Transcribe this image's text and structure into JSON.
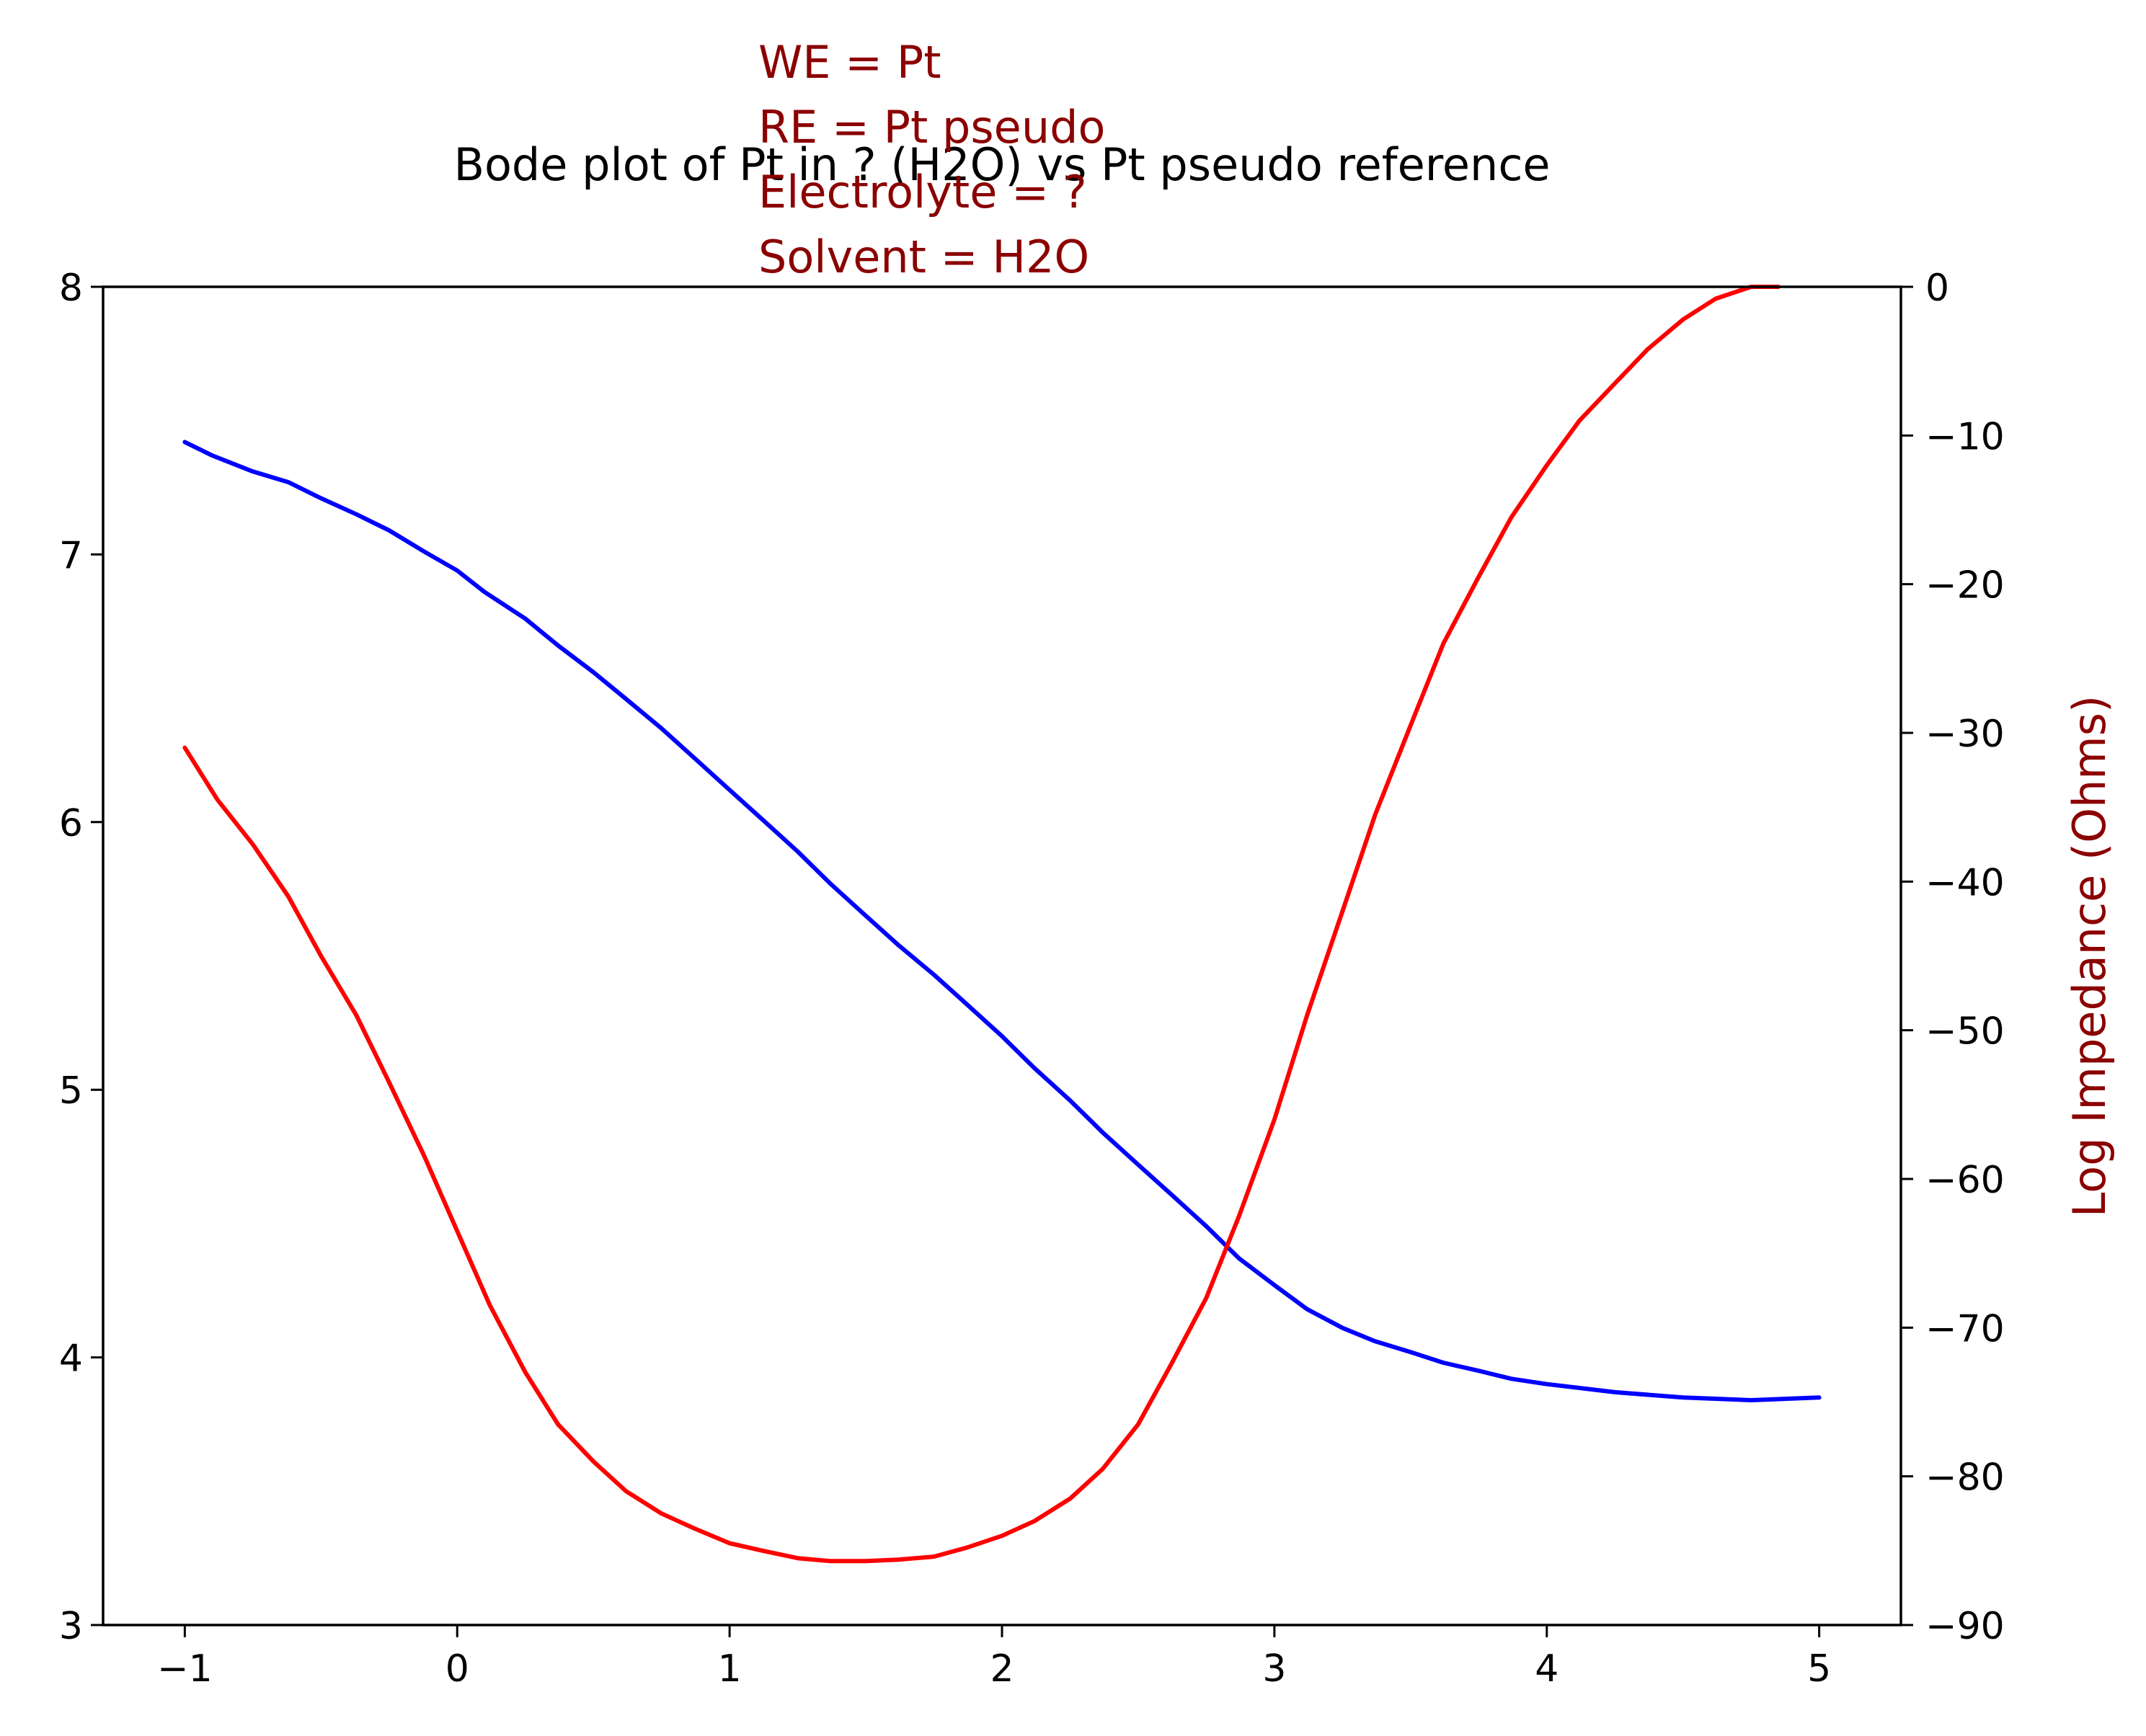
{
  "chart_data": {
    "type": "line",
    "title": "Bode plot of Pt in ? (H2O) vs Pt pseudo reference",
    "annotation": [
      "WE = Pt",
      "RE = Pt pseudo",
      "Electrolyte = ?",
      "Solvent = H2O"
    ],
    "xlabel": "",
    "ylabel_left": "",
    "ylabel_right": "Log Impedance (Ohms)",
    "xlim": [
      -1.3,
      5.3
    ],
    "ylim_left": [
      3,
      8
    ],
    "ylim_right": [
      -90,
      0
    ],
    "xticks": [
      -1,
      0,
      1,
      2,
      3,
      4,
      5
    ],
    "xtick_labels": [
      "−1",
      "0",
      "1",
      "2",
      "3",
      "4",
      "5"
    ],
    "yticks_left": [
      3,
      4,
      5,
      6,
      7,
      8
    ],
    "ytick_labels_left": [
      "3",
      "4",
      "5",
      "6",
      "7",
      "8"
    ],
    "yticks_right": [
      0,
      -10,
      -20,
      -30,
      -40,
      -50,
      -60,
      -70,
      -80,
      -90
    ],
    "ytick_labels_right": [
      "0",
      "−10",
      "−20",
      "−30",
      "−40",
      "−50",
      "−60",
      "−70",
      "−80",
      "−90"
    ],
    "grid": false,
    "colors": {
      "annotation": "#8b0000",
      "axis_label_right": "#8b0000",
      "blue": "#0000ff",
      "red": "#ff0000"
    },
    "series": [
      {
        "axis": "left",
        "color": "#0000ff",
        "x": [
          -1.0,
          -0.9,
          -0.75,
          -0.62,
          -0.5,
          -0.37,
          -0.25,
          -0.12,
          0.0,
          0.1,
          0.25,
          0.37,
          0.5,
          0.62,
          0.75,
          0.87,
          1.0,
          1.12,
          1.25,
          1.37,
          1.5,
          1.62,
          1.75,
          1.87,
          2.0,
          2.12,
          2.25,
          2.37,
          2.5,
          2.62,
          2.75,
          2.87,
          3.0,
          3.12,
          3.25,
          3.37,
          3.5,
          3.62,
          3.75,
          3.87,
          4.0,
          4.25,
          4.5,
          4.75,
          5.0
        ],
        "values": [
          7.42,
          7.37,
          7.31,
          7.27,
          7.21,
          7.15,
          7.09,
          7.01,
          6.94,
          6.86,
          6.76,
          6.66,
          6.56,
          6.46,
          6.35,
          6.24,
          6.12,
          6.01,
          5.89,
          5.77,
          5.65,
          5.54,
          5.43,
          5.32,
          5.2,
          5.08,
          4.96,
          4.84,
          4.72,
          4.61,
          4.49,
          4.37,
          4.27,
          4.18,
          4.11,
          4.06,
          4.02,
          3.98,
          3.95,
          3.92,
          3.9,
          3.87,
          3.85,
          3.84,
          3.85
        ]
      },
      {
        "axis": "right",
        "color": "#ff0000",
        "x": [
          -1.0,
          -0.88,
          -0.75,
          -0.62,
          -0.5,
          -0.37,
          -0.25,
          -0.12,
          0.0,
          0.12,
          0.25,
          0.37,
          0.5,
          0.62,
          0.75,
          0.87,
          1.0,
          1.12,
          1.25,
          1.37,
          1.5,
          1.62,
          1.75,
          1.87,
          2.0,
          2.12,
          2.25,
          2.37,
          2.5,
          2.62,
          2.75,
          2.87,
          3.0,
          3.12,
          3.25,
          3.37,
          3.5,
          3.62,
          3.75,
          3.87,
          4.0,
          4.12,
          4.25,
          4.37,
          4.5,
          4.62,
          4.75,
          4.85
        ],
        "values": [
          -31.0,
          -34.5,
          -37.5,
          -41.0,
          -45.0,
          -49.0,
          -53.5,
          -58.5,
          -63.5,
          -68.5,
          -73.0,
          -76.5,
          -79.0,
          -81.0,
          -82.5,
          -83.5,
          -84.5,
          -85.0,
          -85.5,
          -85.7,
          -85.7,
          -85.6,
          -85.4,
          -84.8,
          -84.0,
          -83.0,
          -81.5,
          -79.5,
          -76.5,
          -72.5,
          -68.0,
          -62.5,
          -56.0,
          -49.0,
          -42.0,
          -35.5,
          -29.5,
          -24.0,
          -19.5,
          -15.5,
          -12.0,
          -9.0,
          -6.5,
          -4.2,
          -2.2,
          -0.8,
          0.0,
          0.0
        ]
      }
    ]
  }
}
